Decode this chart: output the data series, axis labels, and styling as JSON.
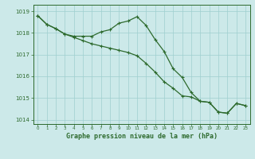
{
  "line1_x": [
    0,
    1,
    2,
    3,
    4,
    5,
    6,
    7,
    8,
    9,
    10,
    11,
    12,
    13,
    14,
    15,
    16,
    17,
    18,
    19,
    20,
    21,
    22,
    23
  ],
  "line1_y": [
    1018.8,
    1018.4,
    1018.2,
    1017.95,
    1017.85,
    1017.85,
    1017.85,
    1018.05,
    1018.15,
    1018.45,
    1018.55,
    1018.75,
    1018.35,
    1017.7,
    1017.15,
    1016.35,
    1015.95,
    1015.25,
    1014.85,
    1014.8,
    1014.35,
    1014.3,
    1014.75,
    1014.65
  ],
  "line2_x": [
    0,
    1,
    2,
    3,
    4,
    5,
    6,
    7,
    8,
    9,
    10,
    11,
    12,
    13,
    14,
    15,
    16,
    17,
    18,
    19,
    20,
    21,
    22,
    23
  ],
  "line2_y": [
    1018.8,
    1018.4,
    1018.2,
    1017.95,
    1017.8,
    1017.65,
    1017.5,
    1017.4,
    1017.3,
    1017.2,
    1017.1,
    1016.95,
    1016.6,
    1016.2,
    1015.75,
    1015.45,
    1015.1,
    1015.05,
    1014.85,
    1014.8,
    1014.35,
    1014.3,
    1014.75,
    1014.65
  ],
  "ylim": [
    1013.8,
    1019.3
  ],
  "yticks": [
    1014,
    1015,
    1016,
    1017,
    1018,
    1019
  ],
  "xticks": [
    0,
    1,
    2,
    3,
    4,
    5,
    6,
    7,
    8,
    9,
    10,
    11,
    12,
    13,
    14,
    15,
    16,
    17,
    18,
    19,
    20,
    21,
    22,
    23
  ],
  "xlabel": "Graphe pression niveau de la mer (hPa)",
  "line_color": "#2d6a2d",
  "bg_color": "#cce9e9",
  "grid_color": "#9fcfcf"
}
